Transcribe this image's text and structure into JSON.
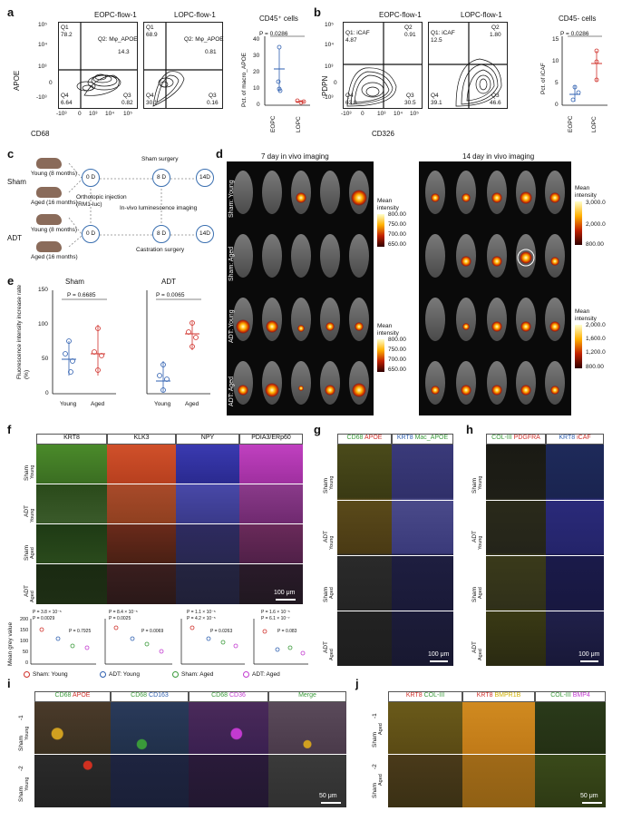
{
  "panels": {
    "a": {
      "label": "a",
      "plot1_title": "EOPC-flow-1",
      "plot2_title": "LOPC-flow-1",
      "y_axis": "APOE",
      "x_axis": "CD68",
      "y_ticks": [
        "10⁵",
        "10⁴",
        "10³",
        "0",
        "-10³"
      ],
      "x_ticks": [
        "-10³",
        "0",
        "10³",
        "10⁴",
        "10⁵"
      ],
      "p1": {
        "q1": "Q1",
        "q1v": "78.2",
        "q2": "Q2: Mφ_APOE",
        "q2v": "14.3",
        "q3": "Q3",
        "q3v": "0.82",
        "q4": "Q4",
        "q4v": "6.64"
      },
      "p2": {
        "q1": "Q1",
        "q1v": "68.9",
        "q2": "Q2: Mφ_APOE",
        "q2v": "0.81",
        "q3": "Q3",
        "q3v": "0.16",
        "q4": "Q4",
        "q4v": "30.1"
      },
      "scatter_title": "CD45⁺ cells",
      "scatter_p": "P = 0.0286",
      "scatter_ylabel": "Pct. of macro_APOE",
      "scatter_yticks": [
        "40",
        "30",
        "20",
        "10",
        "0"
      ],
      "scatter_x": [
        "EOPC",
        "LOPC"
      ]
    },
    "b": {
      "label": "b",
      "plot1_title": "EOPC-flow-1",
      "plot2_title": "LOPC-flow-1",
      "y_axis": "PDPN",
      "x_axis": "CD326",
      "y_ticks": [
        "10⁵",
        "10⁴",
        "10³",
        "0",
        "-10³"
      ],
      "x_ticks": [
        "-10³",
        "0",
        "10³",
        "10⁴",
        "10⁵"
      ],
      "p1": {
        "q1": "Q1: iCAF",
        "q1v": "4.87",
        "q2": "Q2",
        "q2v": "0.91",
        "q3": "Q3",
        "q3v": "30.5",
        "q4": "Q4",
        "q4v": "63.8"
      },
      "p2": {
        "q1": "Q1: iCAF",
        "q1v": "12.5",
        "q2": "Q2",
        "q2v": "1.80",
        "q3": "Q3",
        "q3v": "46.6",
        "q4": "Q4",
        "q4v": "39.1"
      },
      "scatter_title": "CD45- cells",
      "scatter_p": "P = 0.0286",
      "scatter_ylabel": "Pct. of iCAF",
      "scatter_yticks": [
        "15",
        "10",
        "5",
        "0"
      ],
      "scatter_x": [
        "EOPC",
        "LOPC"
      ]
    },
    "c": {
      "label": "c",
      "sham": "Sham",
      "adt": "ADT",
      "young": "Young (8 months)",
      "aged": "Aged (16 months)",
      "d0": "0 D",
      "d8": "8 D",
      "d14": "14D",
      "sham_surgery": "Sham surgery",
      "orthotopic": "Orthotopic injection\n(RM1-luc)",
      "invivo": "In-vivo luminescence imaging",
      "castration": "Castration surgery"
    },
    "d": {
      "label": "d",
      "title7": "7 day in vivo imaging",
      "title14": "14 day in vivo imaging",
      "rows": [
        "Sham: Young",
        "Sham: Aged",
        "ADT: Young",
        "ADT: Aged"
      ],
      "cb1_title": "Mean intensity",
      "cb1_ticks": [
        "800.00",
        "750.00",
        "700.00",
        "650.00"
      ],
      "cb2_title": "Mean intensity",
      "cb2_ticks": [
        "3,000.0",
        "2,000.0",
        "800.00"
      ],
      "cb3_title": "Mean intensity",
      "cb3_ticks": [
        "800.00",
        "750.00",
        "700.00",
        "650.00"
      ],
      "cb4_title": "Mean intensity",
      "cb4_ticks": [
        "2,000.0",
        "1,600.0",
        "1,200.0",
        "800.00"
      ]
    },
    "e": {
      "label": "e",
      "title_sham": "Sham",
      "title_adt": "ADT",
      "p_sham": "P = 0.6685",
      "p_adt": "P = 0.0065",
      "ylabel": "Fluorescence intensity increase rate (%)",
      "yticks": [
        "150",
        "100",
        "50",
        "0"
      ],
      "x": [
        "Young",
        "Aged"
      ]
    },
    "f": {
      "label": "f",
      "columns": [
        "KRT8",
        "KLK3",
        "NPY",
        "PDIA3/ERp60"
      ],
      "rows": [
        "Sham",
        "Young",
        "ADT",
        "Young",
        "Sham",
        "Aged",
        "ADT",
        "Aged"
      ],
      "scale": "100 μm",
      "ylabel": "Mean grey value",
      "yticks": [
        "200",
        "150",
        "100",
        "50",
        "0"
      ],
      "pvals": [
        [
          "P = 3.8 × 10⁻⁵",
          "P = 0.0029",
          "P = 0.7925"
        ],
        [
          "P = 8.4 × 10⁻⁵",
          "P = 0.0025",
          "P = 0.0069"
        ],
        [
          "P = 1.1 × 10⁻⁵",
          "P = 4.2 × 10⁻⁵",
          "P = 0.0263"
        ],
        [
          "P = 1.6 × 10⁻⁵",
          "P = 6.1 × 10⁻⁷",
          "P = 0.083"
        ]
      ],
      "legend": [
        "Sham: Young",
        "ADT: Young",
        "Sham: Aged",
        "ADT: Aged"
      ]
    },
    "g": {
      "label": "g",
      "col1a": "CD68",
      "col1b": "APOE",
      "col2a": "KRT8",
      "col2b": "Mac_APOE",
      "rows": [
        "Sham",
        "Young",
        "ADT",
        "Young",
        "Sham",
        "Aged",
        "ADT",
        "Aged"
      ],
      "scale": "100 μm"
    },
    "h": {
      "label": "h",
      "col1a": "COL-III",
      "col1b": "PDGFRA",
      "col2a": "KRT8",
      "col2b": "iCAF",
      "rows": [
        "Sham",
        "Young",
        "ADT",
        "Young",
        "Sham",
        "Aged",
        "ADT",
        "Aged"
      ],
      "scale": "100 μm"
    },
    "i": {
      "label": "i",
      "c1a": "CD68",
      "c1b": "APOE",
      "c2a": "CD68",
      "c2b": "CD163",
      "c3a": "CD68",
      "c3b": "CD36",
      "c4": "Merge",
      "rows": [
        "Sham",
        "Young",
        "-1",
        "Sham",
        "Young",
        "-2"
      ],
      "scale": "50 μm"
    },
    "j": {
      "label": "j",
      "c1a": "KRT8",
      "c1b": "COL-III",
      "c2a": "KRT8",
      "c2b": "BMPR1B",
      "c3a": "COL-III",
      "c3b": "BMP4",
      "rows": [
        "Sham",
        "Aged",
        "-1",
        "Sham",
        "Aged",
        "-2"
      ],
      "scale": "50 μm"
    }
  },
  "colors": {
    "red": "#d0302a",
    "blue": "#2e5fb0",
    "green": "#3a9a3a",
    "magenta": "#c23ad0",
    "yellow": "#d0b000",
    "orange": "#e08a10"
  }
}
